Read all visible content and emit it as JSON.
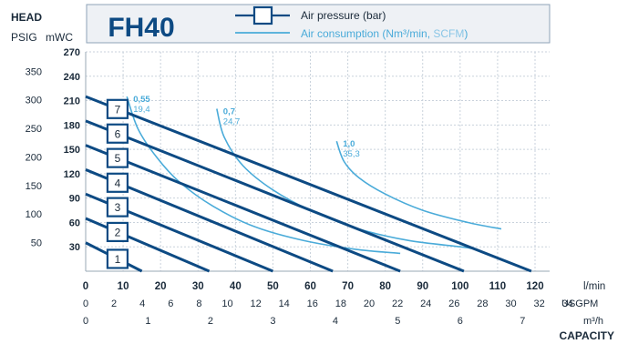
{
  "chart_data": {
    "type": "line",
    "model": "FH40",
    "head_label": "HEAD",
    "psig_label": "PSIG",
    "mwc_label": "mWC",
    "capacity_label": "CAPACITY",
    "legend": {
      "pressure": "Air pressure (bar)",
      "consumption_prefix": "Air consumption (Nm³/min, ",
      "consumption_unit2": "SCFM",
      "consumption_suffix": ")"
    },
    "x_axes": [
      {
        "unit": "l/min",
        "min": 0,
        "max": 120,
        "ticks": [
          "0",
          "10",
          "20",
          "30",
          "40",
          "50",
          "60",
          "70",
          "80",
          "90",
          "100",
          "110",
          "120"
        ]
      },
      {
        "unit": "USGPM",
        "ticks": [
          "0",
          "2",
          "4",
          "6",
          "8",
          "10",
          "12",
          "14",
          "16",
          "18",
          "20",
          "22",
          "24",
          "26",
          "28",
          "30",
          "32",
          "34"
        ]
      },
      {
        "unit": "m³/h",
        "ticks": [
          "0",
          "1",
          "2",
          "3",
          "4",
          "5",
          "6",
          "7"
        ]
      }
    ],
    "y_axes": {
      "mwc": {
        "min": 0,
        "max": 270,
        "ticks": [
          "30",
          "60",
          "90",
          "120",
          "150",
          "180",
          "210",
          "240",
          "270"
        ]
      },
      "psig": {
        "ticks": [
          "50",
          "100",
          "150",
          "200",
          "250",
          "300",
          "350"
        ]
      }
    },
    "pressure_lines": [
      {
        "bar": "1",
        "points": [
          [
            0,
            35
          ],
          [
            15,
            0
          ]
        ]
      },
      {
        "bar": "2",
        "points": [
          [
            0,
            65
          ],
          [
            33,
            0
          ]
        ]
      },
      {
        "bar": "3",
        "points": [
          [
            0,
            95
          ],
          [
            50,
            0
          ]
        ]
      },
      {
        "bar": "4",
        "points": [
          [
            0,
            125
          ],
          [
            66,
            0
          ]
        ]
      },
      {
        "bar": "5",
        "points": [
          [
            0,
            155
          ],
          [
            84,
            0
          ]
        ]
      },
      {
        "bar": "6",
        "points": [
          [
            0,
            185
          ],
          [
            101,
            0
          ]
        ]
      },
      {
        "bar": "7",
        "points": [
          [
            0,
            215
          ],
          [
            119,
            0
          ]
        ]
      }
    ],
    "consumption_curves": [
      {
        "nm3": "0,55",
        "scfm": "19,4",
        "points": [
          [
            11,
            215
          ],
          [
            14,
            175
          ],
          [
            19,
            140
          ],
          [
            25,
            110
          ],
          [
            34,
            80
          ],
          [
            45,
            55
          ],
          [
            58,
            38
          ],
          [
            72,
            27
          ],
          [
            84,
            22
          ]
        ]
      },
      {
        "nm3": "0,7",
        "scfm": "24,7",
        "points": [
          [
            35,
            200
          ],
          [
            37,
            165
          ],
          [
            42,
            130
          ],
          [
            50,
            100
          ],
          [
            60,
            75
          ],
          [
            73,
            52
          ],
          [
            86,
            38
          ],
          [
            100,
            30
          ],
          [
            103,
            28
          ]
        ]
      },
      {
        "nm3": "1,0",
        "scfm": "35,3",
        "points": [
          [
            67,
            160
          ],
          [
            69,
            135
          ],
          [
            73,
            115
          ],
          [
            80,
            95
          ],
          [
            90,
            75
          ],
          [
            102,
            60
          ],
          [
            111,
            52
          ]
        ]
      }
    ]
  }
}
